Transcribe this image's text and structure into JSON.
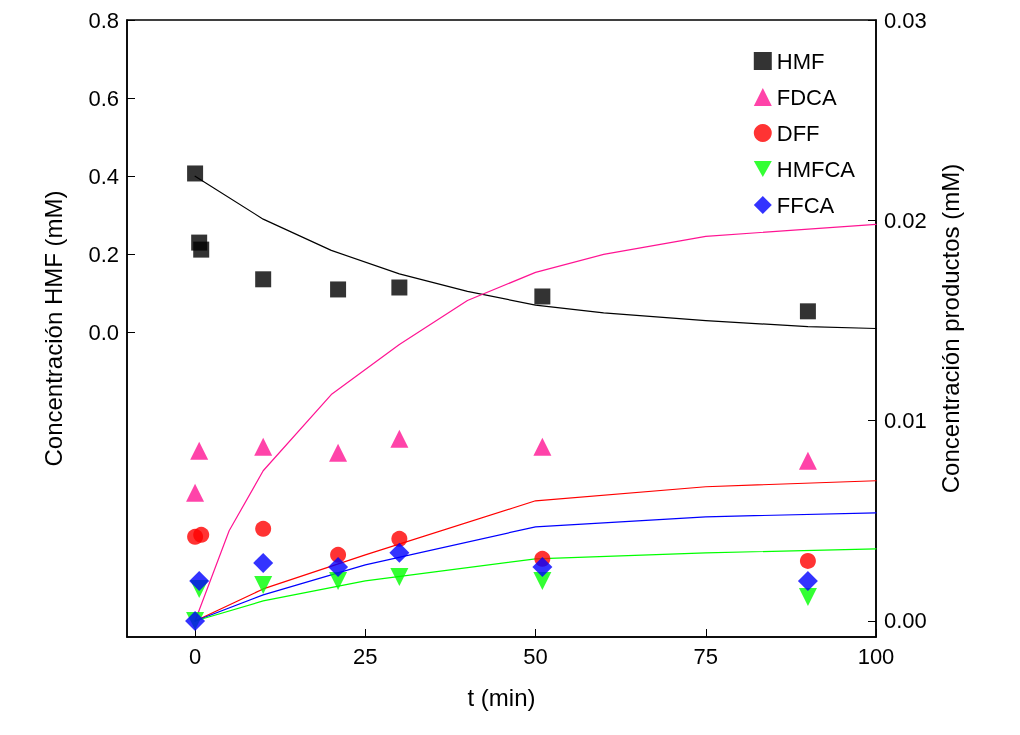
{
  "chart_data": {
    "type": "scatter",
    "xlabel": "t (min)",
    "ylabel": "Concentración HMF (mM)",
    "y2label": "Concentración productos (mM)",
    "xlim": [
      -10,
      100
    ],
    "xticks": [
      0,
      25,
      50,
      75,
      100
    ],
    "ylim": [
      -0.78,
      0.8
    ],
    "yticks": [
      {
        "value": 0,
        "label": "0.0"
      },
      {
        "value": 0.2,
        "label": "0.2"
      },
      {
        "value": 0.4,
        "label": "0.4"
      },
      {
        "value": 0.6,
        "label": "0.6"
      },
      {
        "value": 0.8,
        "label": "0.8"
      }
    ],
    "y2lim": [
      -0.0008,
      0.03
    ],
    "y2ticks": [
      {
        "value": 0,
        "label": "0.00"
      },
      {
        "value": 0.01,
        "label": "0.01"
      },
      {
        "value": 0.02,
        "label": "0.02"
      },
      {
        "value": 0.03,
        "label": "0.03"
      }
    ],
    "grid": false,
    "legend": "top right",
    "series": [
      {
        "name": "HMF",
        "color": "#000000",
        "marker": "square",
        "axis": "y",
        "x": [
          0,
          0.6,
          0.9,
          10,
          21,
          30,
          51,
          90
        ],
        "values": [
          0.407,
          0.23,
          0.212,
          0.136,
          0.11,
          0.115,
          0.092,
          0.054
        ]
      },
      {
        "name": "FDCA",
        "color": "#ff1493",
        "marker": "triangle",
        "axis": "y2",
        "x": [
          0.6,
          0,
          10,
          21,
          30,
          51,
          90
        ],
        "values": [
          0.0085,
          0.0064,
          0.0087,
          0.0084,
          0.0091,
          0.0087,
          0.008
        ]
      },
      {
        "name": "DFF",
        "color": "#ff0000",
        "marker": "circle",
        "axis": "y2",
        "x": [
          0,
          0.9,
          10,
          21,
          30,
          51,
          90
        ],
        "values": [
          0.0042,
          0.0043,
          0.0046,
          0.0033,
          0.0041,
          0.0031,
          0.003
        ]
      },
      {
        "name": "HMFCA",
        "color": "#00ff00",
        "marker": "triangle-down",
        "axis": "y2",
        "x": [
          0,
          0.6,
          10,
          21,
          30,
          51,
          90
        ],
        "values": [
          0,
          0.0016,
          0.0018,
          0.002,
          0.0022,
          0.002,
          0.0012
        ]
      },
      {
        "name": "FFCA",
        "color": "#0000ff",
        "marker": "diamond",
        "axis": "y2",
        "x": [
          0,
          0.6,
          10,
          21,
          30,
          51,
          90
        ],
        "values": [
          0,
          0.002,
          0.0029,
          0.0027,
          0.0034,
          0.0027,
          0.002
        ]
      },
      {
        "type": "line",
        "color": "#000000",
        "marker": "none",
        "axis": "y",
        "x": [
          0,
          10,
          20,
          30,
          40,
          50,
          60,
          75,
          90,
          100
        ],
        "values": [
          0.4,
          0.29,
          0.21,
          0.15,
          0.105,
          0.07,
          0.05,
          0.03,
          0.015,
          0.01
        ]
      },
      {
        "type": "line",
        "color": "#ff1493",
        "marker": "none",
        "axis": "y2",
        "x": [
          0,
          5,
          10,
          20,
          30,
          40,
          50,
          60,
          75,
          100
        ],
        "values": [
          0,
          0.0045,
          0.0075,
          0.0113,
          0.0138,
          0.016,
          0.0174,
          0.0183,
          0.0192,
          0.0198
        ]
      },
      {
        "type": "line",
        "color": "#ff0000",
        "marker": "none",
        "axis": "y2",
        "x": [
          0,
          10,
          25,
          50,
          75,
          100
        ],
        "values": [
          0,
          0.0016,
          0.0033,
          0.006,
          0.0067,
          0.007
        ]
      },
      {
        "type": "line",
        "color": "#0000ff",
        "marker": "none",
        "axis": "y2",
        "x": [
          0,
          10,
          25,
          50,
          75,
          100
        ],
        "values": [
          0,
          0.0013,
          0.0028,
          0.0047,
          0.0052,
          0.0054
        ]
      },
      {
        "type": "line",
        "color": "#00ff00",
        "marker": "none",
        "axis": "y2",
        "x": [
          0,
          10,
          25,
          50,
          75,
          100
        ],
        "values": [
          0,
          0.001,
          0.002,
          0.0031,
          0.0034,
          0.0036
        ]
      }
    ]
  }
}
